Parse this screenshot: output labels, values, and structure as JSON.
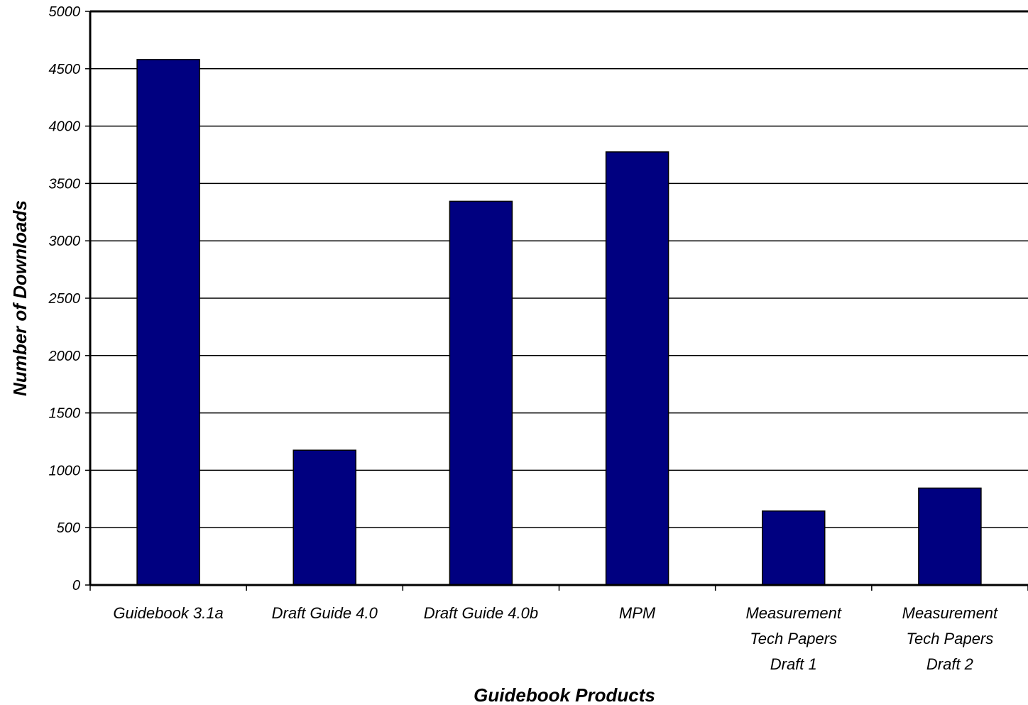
{
  "chart_data": {
    "type": "bar",
    "title": "",
    "xlabel": "Guidebook Products",
    "ylabel": "Number of Downloads",
    "ylim": [
      0,
      5000
    ],
    "ytick_step": 500,
    "grid": "horizontal",
    "legend": "none",
    "bar_color": "#000080",
    "categories": [
      "Guidebook 3.1a",
      "Draft Guide 4.0",
      "Draft Guide 4.0b",
      "MPM",
      "Measurement Tech Papers Draft 1",
      "Measurement Tech Papers Draft 2"
    ],
    "category_lines": [
      [
        "Guidebook 3.1a"
      ],
      [
        "Draft Guide 4.0"
      ],
      [
        "Draft Guide 4.0b"
      ],
      [
        "MPM"
      ],
      [
        "Measurement",
        "Tech Papers",
        "Draft 1"
      ],
      [
        "Measurement",
        "Tech Papers",
        "Draft 2"
      ]
    ],
    "values": [
      4580,
      1175,
      3345,
      3775,
      645,
      845
    ]
  }
}
